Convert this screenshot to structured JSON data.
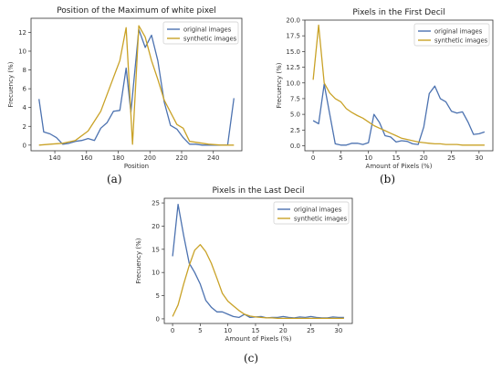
{
  "colors": {
    "original": "#4c72b0",
    "synthetic": "#c9a227"
  },
  "chart_data": [
    {
      "id": "a",
      "type": "line",
      "caption": "(a)",
      "title": "Position of the Maximum of white pixel",
      "xlabel": "Position",
      "ylabel": "Frecuency (%)",
      "xlim": [
        125,
        258
      ],
      "ylim": [
        -0.6,
        13.5
      ],
      "xticks": [
        140,
        160,
        180,
        200,
        220,
        240
      ],
      "yticks": [
        0,
        2,
        4,
        6,
        8,
        10,
        12
      ],
      "legend": "top-right",
      "series": [
        {
          "name": "original images",
          "color_key": "original",
          "x": [
            130,
            133,
            137,
            141,
            145,
            149,
            153,
            157,
            161,
            165,
            169,
            173,
            177,
            181,
            185,
            188,
            193,
            197,
            201,
            205,
            209,
            213,
            217,
            221,
            225,
            229,
            233,
            237,
            241,
            245,
            249,
            253
          ],
          "y": [
            4.9,
            1.4,
            1.2,
            0.8,
            0.1,
            0.2,
            0.4,
            0.5,
            0.7,
            0.5,
            1.8,
            2.4,
            3.6,
            3.7,
            8.2,
            3.5,
            12.3,
            10.4,
            11.7,
            9.0,
            4.6,
            2.1,
            1.7,
            0.8,
            0.1,
            0.1,
            0.0,
            0.0,
            0.0,
            0.0,
            0.0,
            5.0
          ]
        },
        {
          "name": "synthetic images",
          "color_key": "synthetic",
          "x": [
            130,
            137,
            145,
            153,
            161,
            169,
            177,
            181,
            185,
            189,
            193,
            197,
            201,
            205,
            209,
            213,
            217,
            221,
            225,
            229,
            237,
            245,
            253
          ],
          "y": [
            0.0,
            0.1,
            0.2,
            0.5,
            1.5,
            3.6,
            7.2,
            9.0,
            12.5,
            0.1,
            12.7,
            11.5,
            9.0,
            7.0,
            4.8,
            3.5,
            2.2,
            1.8,
            0.4,
            0.3,
            0.1,
            0.0,
            0.0
          ]
        }
      ]
    },
    {
      "id": "b",
      "type": "line",
      "caption": "(b)",
      "title": "Pixels in the First Decil",
      "xlabel": "Amount of Pixels (%)",
      "ylabel": "Frecuency (%)",
      "xlim": [
        -1.5,
        32.5
      ],
      "ylim": [
        -0.8,
        20
      ],
      "xticks": [
        0,
        5,
        10,
        15,
        20,
        25,
        30
      ],
      "yticks": [
        0.0,
        2.5,
        5.0,
        7.5,
        10.0,
        12.5,
        15.0,
        17.5,
        20.0
      ],
      "ytick_labels": [
        "0.0",
        "2.5",
        "5.0",
        "7.5",
        "10.0",
        "12.5",
        "15.0",
        "17.5",
        "20.0"
      ],
      "legend": "top-right",
      "series": [
        {
          "name": "original images",
          "color_key": "original",
          "x": [
            0,
            1,
            2,
            3,
            4,
            5,
            6,
            7,
            8,
            9,
            10,
            11,
            12,
            13,
            14,
            15,
            16,
            17,
            18,
            19,
            20,
            21,
            22,
            23,
            24,
            25,
            26,
            27,
            28,
            29,
            30,
            31
          ],
          "y": [
            4.0,
            3.5,
            9.8,
            5.0,
            0.3,
            0.1,
            0.1,
            0.4,
            0.4,
            0.2,
            0.5,
            5.0,
            3.7,
            1.6,
            1.4,
            0.6,
            0.8,
            0.7,
            0.3,
            0.2,
            3.0,
            8.3,
            9.5,
            7.5,
            7.0,
            5.5,
            5.2,
            5.4,
            3.8,
            1.8,
            1.9,
            2.2
          ]
        },
        {
          "name": "synthetic images",
          "color_key": "synthetic",
          "x": [
            0,
            1,
            2,
            3,
            4,
            5,
            6,
            7,
            8,
            9,
            10,
            11,
            12,
            13,
            14,
            15,
            16,
            17,
            18,
            19,
            20,
            21,
            22,
            23,
            24,
            25,
            26,
            27,
            28,
            29,
            30,
            31
          ],
          "y": [
            10.5,
            19.2,
            10.0,
            8.4,
            7.5,
            7.0,
            5.9,
            5.3,
            4.8,
            4.4,
            3.8,
            3.2,
            2.8,
            2.4,
            2.0,
            1.6,
            1.2,
            1.0,
            0.8,
            0.6,
            0.5,
            0.4,
            0.3,
            0.3,
            0.2,
            0.2,
            0.2,
            0.1,
            0.1,
            0.1,
            0.1,
            0.1
          ]
        }
      ]
    },
    {
      "id": "c",
      "type": "line",
      "caption": "(c)",
      "title": "Pixels in the Last Decil",
      "xlabel": "Amount of Pixels (%)",
      "ylabel": "Frecuency (%)",
      "xlim": [
        -1.5,
        32.5
      ],
      "ylim": [
        -1,
        26
      ],
      "xticks": [
        0,
        5,
        10,
        15,
        20,
        25,
        30
      ],
      "yticks": [
        0,
        5,
        10,
        15,
        20,
        25
      ],
      "legend": "top-right",
      "series": [
        {
          "name": "original images",
          "color_key": "original",
          "x": [
            0,
            1,
            2,
            3,
            4,
            5,
            6,
            7,
            8,
            9,
            10,
            11,
            12,
            13,
            14,
            15,
            16,
            17,
            18,
            19,
            20,
            21,
            22,
            23,
            24,
            25,
            26,
            27,
            28,
            29,
            30,
            31
          ],
          "y": [
            13.5,
            24.7,
            18.0,
            12.0,
            10.0,
            7.5,
            4.0,
            2.5,
            1.5,
            1.5,
            1.0,
            0.5,
            0.3,
            1.0,
            0.3,
            0.4,
            0.5,
            0.2,
            0.3,
            0.3,
            0.5,
            0.3,
            0.2,
            0.4,
            0.3,
            0.5,
            0.3,
            0.2,
            0.2,
            0.4,
            0.3,
            0.3
          ]
        },
        {
          "name": "synthetic images",
          "color_key": "synthetic",
          "x": [
            0,
            1,
            2,
            3,
            4,
            5,
            6,
            7,
            8,
            9,
            10,
            11,
            12,
            13,
            14,
            15,
            16,
            17,
            18,
            19,
            20,
            21,
            22,
            23,
            24,
            25,
            26,
            27,
            28,
            29,
            30,
            31
          ],
          "y": [
            0.5,
            3.0,
            7.5,
            11.5,
            14.8,
            16.0,
            14.5,
            12.0,
            8.8,
            5.5,
            3.8,
            2.8,
            1.8,
            1.0,
            0.6,
            0.4,
            0.3,
            0.2,
            0.2,
            0.1,
            0.1,
            0.1,
            0.1,
            0.1,
            0.1,
            0.1,
            0.1,
            0.1,
            0.1,
            0.1,
            0.1,
            0.1
          ]
        }
      ]
    }
  ]
}
